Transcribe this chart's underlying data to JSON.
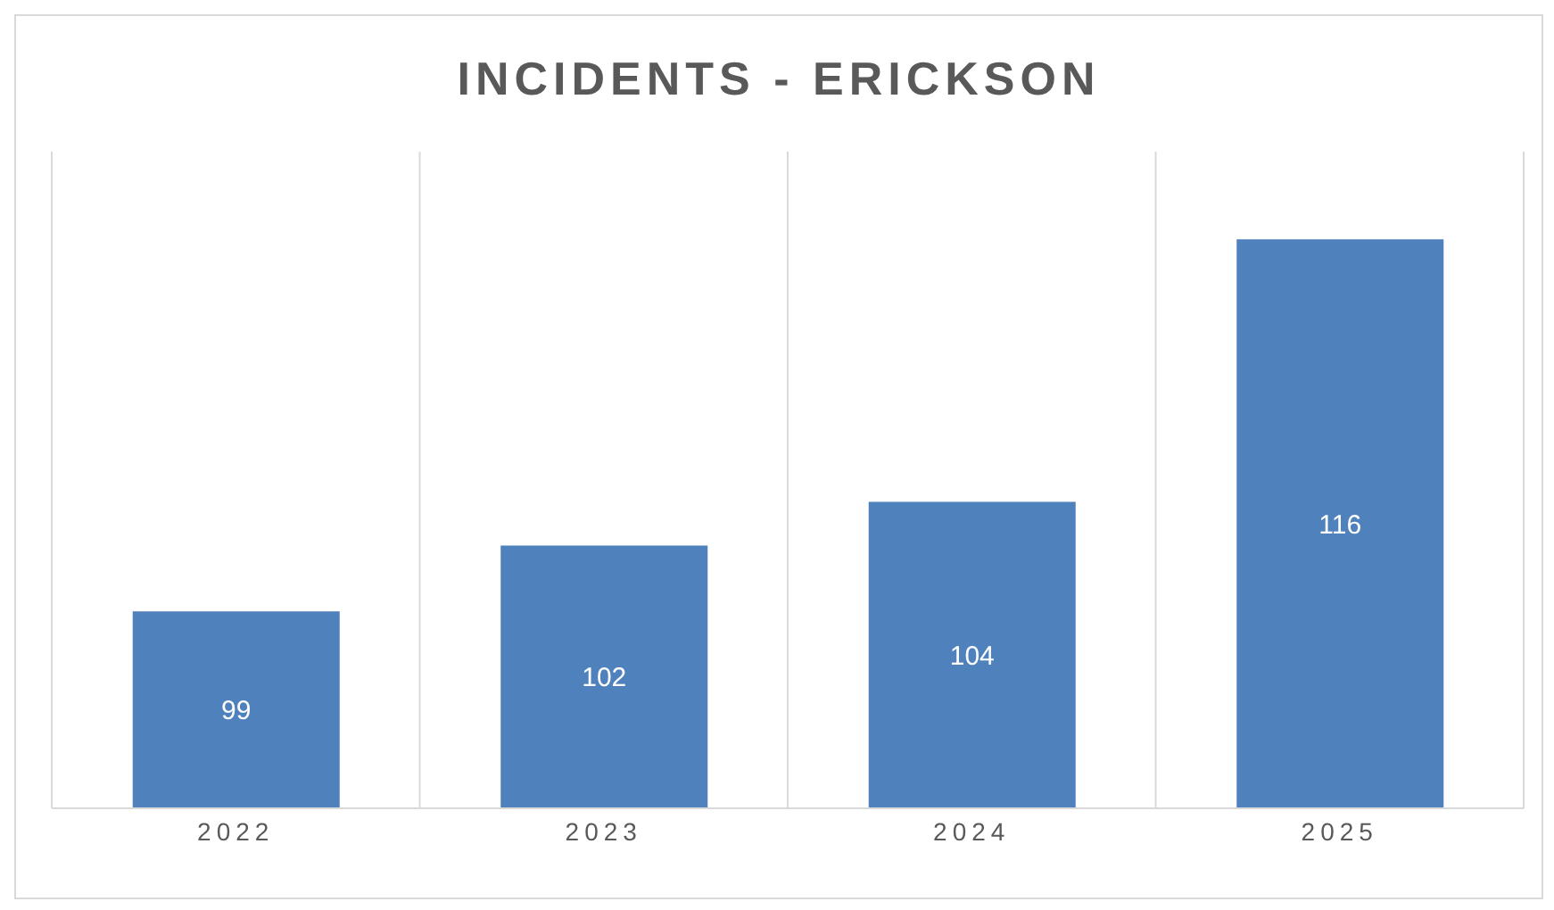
{
  "chart_data": {
    "type": "bar",
    "title": "INCIDENTS - ERICKSON",
    "categories": [
      "2022",
      "2023",
      "2024",
      "2025"
    ],
    "values": [
      99,
      102,
      104,
      116
    ],
    "color": "#4f81bd",
    "ylim": [
      90,
      120
    ],
    "tick_labels": "x",
    "grid": "x",
    "data_labels": true
  }
}
